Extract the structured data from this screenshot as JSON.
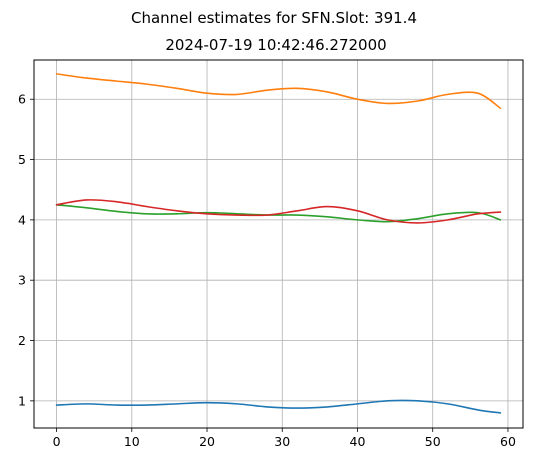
{
  "chart_data": {
    "type": "line",
    "title": "Channel estimates for SFN.Slot: 391.4",
    "subtitle": "2024-07-19 10:42:46.272000",
    "xlabel": "",
    "ylabel": "",
    "xlim": [
      -3,
      62
    ],
    "ylim": [
      0.55,
      6.65
    ],
    "xticks": [
      0,
      10,
      20,
      30,
      40,
      50,
      60
    ],
    "yticks": [
      1,
      2,
      3,
      4,
      5,
      6
    ],
    "grid": true,
    "legend": "none",
    "x": [
      0,
      4,
      8,
      12,
      16,
      20,
      24,
      28,
      32,
      36,
      40,
      44,
      48,
      52,
      56,
      59
    ],
    "series": [
      {
        "color": "#1f77b4",
        "values": [
          0.93,
          0.95,
          0.93,
          0.93,
          0.95,
          0.97,
          0.95,
          0.9,
          0.88,
          0.9,
          0.95,
          1.0,
          1.0,
          0.95,
          0.85,
          0.8
        ]
      },
      {
        "color": "#ff7f0e",
        "values": [
          6.42,
          6.35,
          6.3,
          6.25,
          6.18,
          6.1,
          6.08,
          6.15,
          6.18,
          6.12,
          6.0,
          5.93,
          5.97,
          6.08,
          6.1,
          5.85
        ]
      },
      {
        "color": "#2ca02c",
        "values": [
          4.25,
          4.2,
          4.14,
          4.1,
          4.1,
          4.12,
          4.1,
          4.08,
          4.08,
          4.05,
          4.0,
          3.97,
          4.02,
          4.1,
          4.12,
          4.0
        ]
      },
      {
        "color": "#d62728",
        "values": [
          4.25,
          4.33,
          4.3,
          4.22,
          4.15,
          4.1,
          4.08,
          4.08,
          4.15,
          4.22,
          4.15,
          4.0,
          3.95,
          4.0,
          4.1,
          4.13
        ]
      }
    ]
  }
}
